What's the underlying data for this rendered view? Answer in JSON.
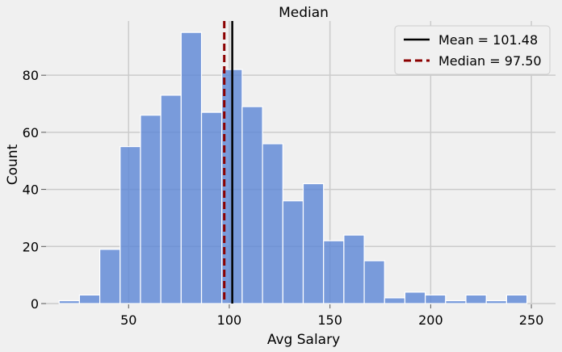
{
  "chart_data": {
    "type": "bar",
    "title": "Median",
    "xlabel": "Avg Salary",
    "ylabel": "Count",
    "xlim": [
      9,
      262
    ],
    "ylim": [
      0,
      99
    ],
    "grid": true,
    "legend_position": "top-right",
    "bin_width": 10.1,
    "bin_start": 15.5,
    "counts": [
      1,
      3,
      19,
      55,
      66,
      73,
      95,
      67,
      82,
      69,
      56,
      36,
      42,
      22,
      24,
      15,
      2,
      4,
      3,
      1,
      3,
      1,
      3
    ],
    "x_ticks": [
      50,
      100,
      150,
      200,
      250
    ],
    "y_ticks": [
      0,
      20,
      40,
      60,
      80
    ],
    "bar_color": "#5b86d6",
    "lines": [
      {
        "label": "Mean = 101.48",
        "value": 101.48,
        "color": "#000000",
        "style": "solid"
      },
      {
        "label": "Median = 97.50",
        "value": 97.5,
        "color": "#8b0000",
        "style": "dashed"
      }
    ]
  }
}
